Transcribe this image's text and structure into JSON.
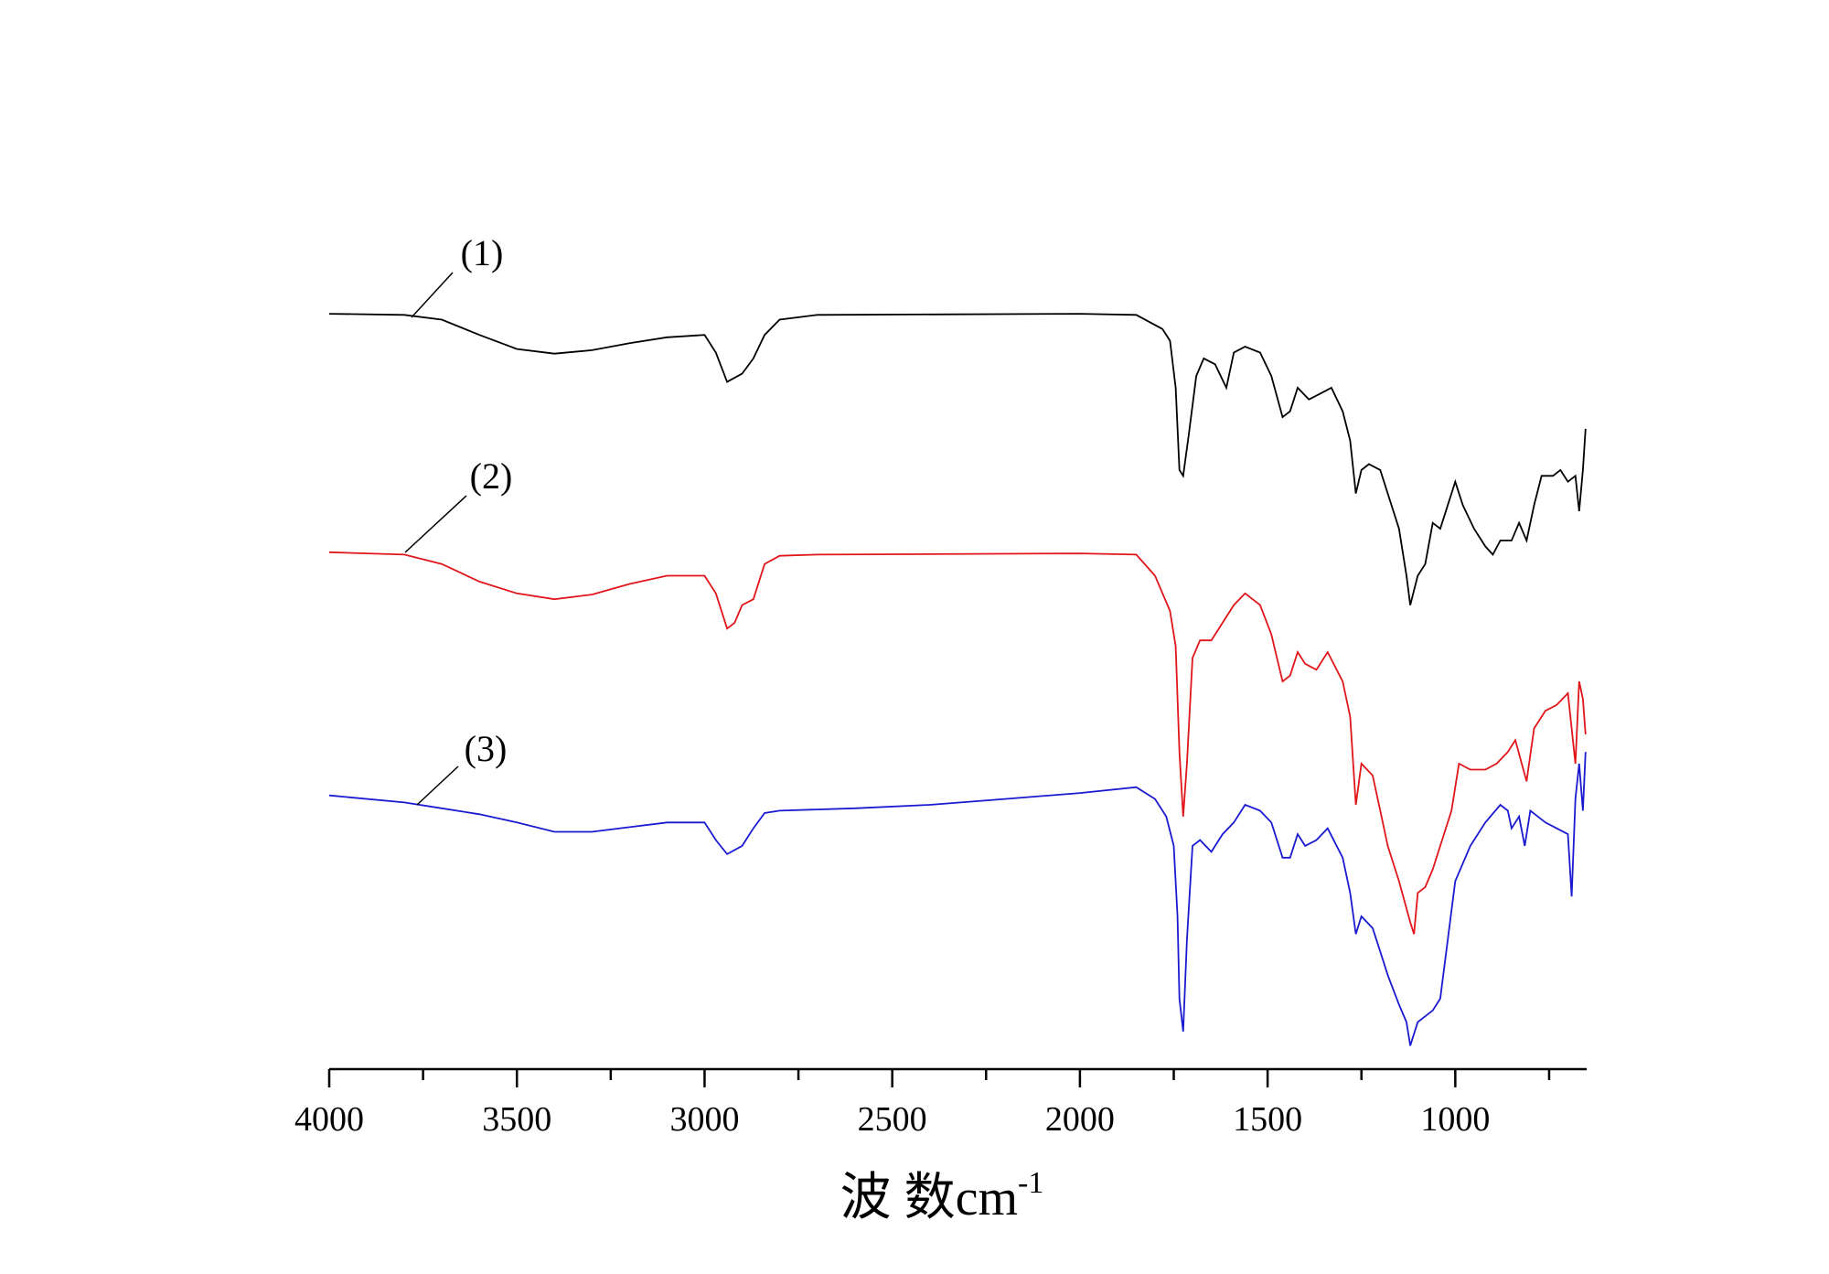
{
  "chart_data": {
    "type": "line",
    "xlabel": "波 数cm",
    "xlabel_exponent": "-1",
    "xlim": [
      4000,
      650
    ],
    "ylim": [
      0,
      710
    ],
    "xticks": [
      4000,
      3500,
      3000,
      2500,
      2000,
      1500,
      1000
    ],
    "xticks_minor": [
      3750,
      3250,
      2750,
      2250,
      1750,
      1250,
      750
    ],
    "series": [
      {
        "name": "(1)",
        "color": "#000000",
        "x": [
          4000,
          3800,
          3700,
          3600,
          3500,
          3400,
          3300,
          3200,
          3100,
          3000,
          2970,
          2940,
          2900,
          2870,
          2840,
          2800,
          2700,
          2000,
          1850,
          1780,
          1760,
          1745,
          1735,
          1725,
          1710,
          1690,
          1670,
          1640,
          1610,
          1590,
          1560,
          1520,
          1490,
          1460,
          1440,
          1420,
          1390,
          1360,
          1330,
          1300,
          1280,
          1265,
          1250,
          1230,
          1200,
          1180,
          1150,
          1130,
          1120,
          1100,
          1080,
          1060,
          1040,
          1010,
          1000,
          980,
          950,
          920,
          900,
          880,
          850,
          830,
          810,
          790,
          770,
          740,
          720,
          700,
          680,
          670,
          660,
          653
        ],
        "values": [
          643,
          642,
          638,
          625,
          613,
          609,
          612,
          618,
          623,
          625,
          610,
          585,
          592,
          605,
          625,
          638,
          642,
          643,
          642,
          630,
          620,
          580,
          510,
          505,
          540,
          590,
          605,
          600,
          580,
          610,
          615,
          610,
          590,
          555,
          560,
          580,
          570,
          575,
          580,
          560,
          535,
          490,
          510,
          515,
          510,
          490,
          460,
          420,
          395,
          420,
          430,
          465,
          460,
          490,
          500,
          480,
          460,
          445,
          438,
          450,
          450,
          465,
          450,
          480,
          505,
          505,
          510,
          500,
          505,
          475,
          510,
          545
        ]
      },
      {
        "name": "(2)",
        "color": "#e0161b",
        "x": [
          4000,
          3800,
          3700,
          3600,
          3500,
          3400,
          3300,
          3200,
          3100,
          3000,
          2970,
          2940,
          2920,
          2900,
          2870,
          2840,
          2800,
          2700,
          2000,
          1850,
          1800,
          1760,
          1745,
          1735,
          1725,
          1715,
          1700,
          1680,
          1650,
          1620,
          1590,
          1560,
          1520,
          1490,
          1460,
          1440,
          1420,
          1400,
          1370,
          1340,
          1300,
          1280,
          1265,
          1250,
          1220,
          1200,
          1180,
          1150,
          1120,
          1110,
          1100,
          1080,
          1060,
          1040,
          1010,
          990,
          960,
          920,
          890,
          860,
          840,
          810,
          790,
          760,
          730,
          700,
          680,
          670,
          660,
          653
        ],
        "values": [
          440,
          438,
          430,
          415,
          405,
          400,
          404,
          413,
          420,
          420,
          405,
          375,
          380,
          395,
          400,
          430,
          437,
          438,
          439,
          438,
          420,
          390,
          360,
          270,
          215,
          260,
          350,
          365,
          365,
          380,
          395,
          405,
          395,
          370,
          330,
          335,
          355,
          345,
          340,
          355,
          330,
          300,
          225,
          260,
          250,
          220,
          190,
          160,
          125,
          115,
          150,
          155,
          170,
          190,
          220,
          260,
          255,
          255,
          260,
          270,
          280,
          245,
          290,
          305,
          310,
          320,
          260,
          330,
          315,
          285
        ]
      },
      {
        "name": "(3)",
        "color": "#1a1ad0",
        "x": [
          4000,
          3800,
          3700,
          3600,
          3500,
          3400,
          3300,
          3200,
          3100,
          3000,
          2970,
          2940,
          2900,
          2870,
          2840,
          2800,
          2600,
          2400,
          2200,
          2000,
          1850,
          1800,
          1770,
          1750,
          1740,
          1735,
          1725,
          1715,
          1700,
          1680,
          1650,
          1620,
          1590,
          1560,
          1520,
          1490,
          1460,
          1440,
          1420,
          1400,
          1370,
          1340,
          1300,
          1280,
          1265,
          1250,
          1220,
          1200,
          1180,
          1150,
          1130,
          1120,
          1100,
          1080,
          1060,
          1040,
          1020,
          1000,
          960,
          920,
          880,
          860,
          850,
          830,
          815,
          800,
          780,
          760,
          730,
          700,
          690,
          680,
          670,
          660,
          653
        ],
        "values": [
          233,
          227,
          222,
          217,
          210,
          202,
          202,
          206,
          210,
          210,
          195,
          183,
          190,
          205,
          218,
          220,
          222,
          225,
          230,
          235,
          240,
          230,
          215,
          190,
          130,
          60,
          32,
          110,
          190,
          195,
          185,
          200,
          210,
          225,
          220,
          210,
          180,
          180,
          200,
          190,
          195,
          205,
          180,
          150,
          115,
          130,
          120,
          100,
          80,
          55,
          40,
          20,
          40,
          45,
          50,
          60,
          110,
          160,
          190,
          210,
          225,
          220,
          205,
          215,
          190,
          220,
          215,
          210,
          205,
          200,
          147,
          230,
          260,
          220,
          270
        ]
      }
    ]
  }
}
